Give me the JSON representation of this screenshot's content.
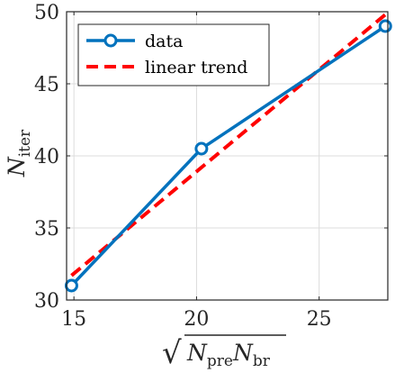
{
  "chart_data": {
    "type": "line",
    "xlim": [
      14.7,
      27.8
    ],
    "ylim": [
      30,
      50
    ],
    "xticks": [
      15,
      20,
      25
    ],
    "yticks": [
      30,
      35,
      40,
      45,
      50
    ],
    "xtick_labels": [
      "15",
      "20",
      "25"
    ],
    "ytick_labels": [
      "30",
      "35",
      "40",
      "45",
      "50"
    ],
    "grid": true,
    "legend_position": "top-left",
    "xlabel": {
      "radical": "√",
      "n1": "N",
      "s1": "pre",
      "n2": "N",
      "s2": "br"
    },
    "ylabel": {
      "n": "N",
      "s": "iter"
    },
    "series": [
      {
        "name": "data",
        "style": "solid-circle-markers",
        "color": "#0072BD",
        "x": [
          14.9,
          20.2,
          27.7
        ],
        "y": [
          31,
          40.5,
          49
        ]
      },
      {
        "name": "linear trend",
        "style": "dashed",
        "color": "#FF0000",
        "x": [
          14.9,
          27.7
        ],
        "y": [
          31.7,
          49.8
        ]
      }
    ]
  }
}
